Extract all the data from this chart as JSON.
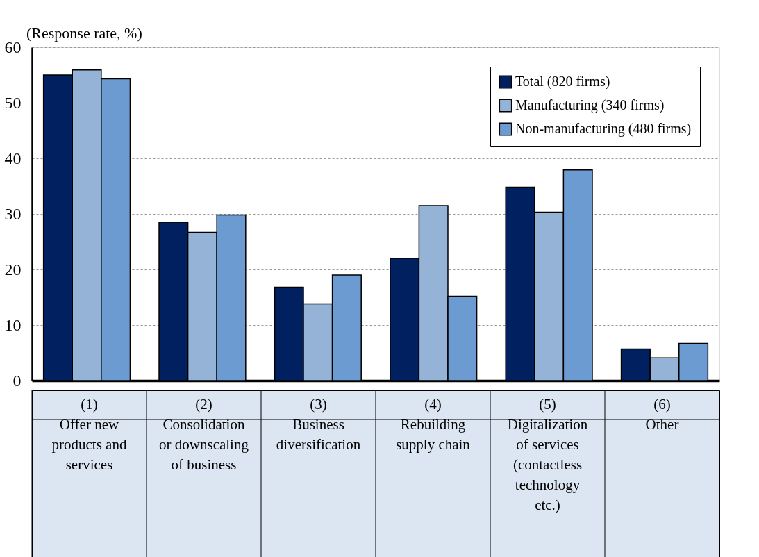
{
  "chart_data": {
    "type": "bar",
    "ylabel": "(Response rate, %)",
    "categories": [
      "(1) Offer new products and services",
      "(2) Consolidation or downscaling of business",
      "(3) Business diversification",
      "(4) Rebuilding supply chain",
      "(5) Digitalization of services (contactless technology etc.)",
      "(6) Other"
    ],
    "series": [
      {
        "name": "Total (820 firms)",
        "color": "#002060",
        "values": [
          55.0,
          28.5,
          16.8,
          22.0,
          34.8,
          5.7
        ]
      },
      {
        "name": "Manufacturing (340 firms)",
        "color": "#95b3d7",
        "values": [
          55.9,
          26.7,
          13.8,
          31.5,
          30.3,
          4.1
        ]
      },
      {
        "name": "Non-manufacturing (480 firms)",
        "color": "#6c9bd2",
        "values": [
          54.3,
          29.8,
          19.0,
          15.2,
          37.9,
          6.7
        ]
      }
    ],
    "ylim": [
      0,
      60
    ],
    "yticks": [
      0,
      10,
      20,
      30,
      40,
      50,
      60
    ],
    "grid": "y",
    "legend": "top right"
  }
}
